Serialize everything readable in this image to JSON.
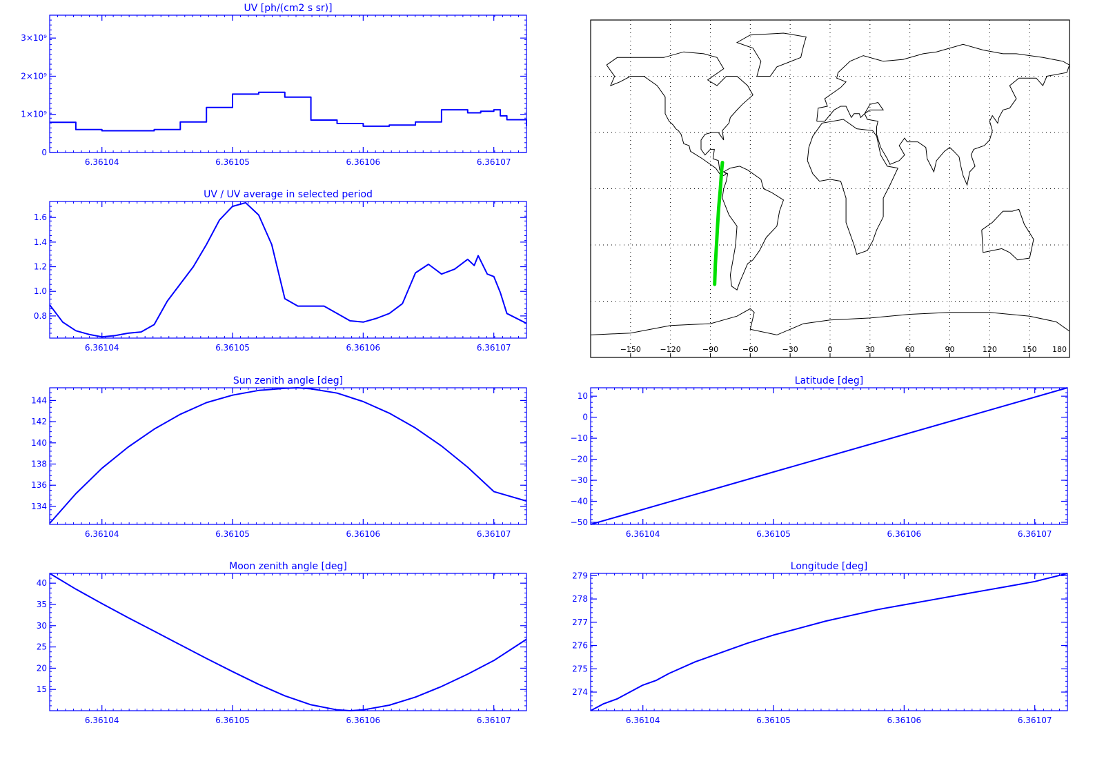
{
  "colors": {
    "axis": "#0000ff",
    "series": "#0000ff",
    "track": "#00e000",
    "coast": "#000000",
    "grid": "#000000"
  },
  "chart_data": [
    {
      "id": "uv",
      "type": "line",
      "title": "UV [ph/(cm2 s sr)]",
      "xlabel": "",
      "ylabel": "",
      "xlim": [
        6.361036,
        6.3610725
      ],
      "ylim": [
        0,
        3600000000
      ],
      "xticks": [
        6.36104,
        6.36105,
        6.36106,
        6.36107
      ],
      "xtick_labels": [
        "6.36104",
        "6.36105",
        "6.36106",
        "6.36107"
      ],
      "yticks": [
        0,
        1000000000,
        2000000000,
        3000000000
      ],
      "ytick_labels": [
        "0",
        "1×10⁹",
        "2×10⁹",
        "3×10⁹"
      ],
      "step": true,
      "grid": false,
      "x": [
        6.361036,
        6.361038,
        6.36104,
        6.361042,
        6.361044,
        6.361046,
        6.361048,
        6.36105,
        6.361052,
        6.361054,
        6.361056,
        6.361058,
        6.36106,
        6.361062,
        6.361064,
        6.361066,
        6.361068,
        6.361069,
        6.36107,
        6.3610705,
        6.361071,
        6.3610725
      ],
      "values": [
        790000000,
        600000000,
        570000000,
        570000000,
        600000000,
        800000000,
        1180000000,
        1530000000,
        1580000000,
        1450000000,
        850000000,
        760000000,
        690000000,
        720000000,
        800000000,
        1120000000,
        1040000000,
        1080000000,
        1120000000,
        960000000,
        860000000,
        700000000
      ]
    },
    {
      "id": "uv_ratio",
      "type": "line",
      "title": "UV / UV average in selected period",
      "xlabel": "",
      "ylabel": "",
      "xlim": [
        6.361036,
        6.3610725
      ],
      "ylim": [
        0.62,
        1.73
      ],
      "xticks": [
        6.36104,
        6.36105,
        6.36106,
        6.36107
      ],
      "xtick_labels": [
        "6.36104",
        "6.36105",
        "6.36106",
        "6.36107"
      ],
      "yticks": [
        0.8,
        1.0,
        1.2,
        1.4,
        1.6
      ],
      "ytick_labels": [
        "0.8",
        "1.0",
        "1.2",
        "1.4",
        "1.6"
      ],
      "grid": false,
      "x": [
        6.361036,
        6.361037,
        6.361038,
        6.361039,
        6.36104,
        6.361041,
        6.361042,
        6.361043,
        6.361044,
        6.361045,
        6.361046,
        6.361047,
        6.361048,
        6.361049,
        6.36105,
        6.361051,
        6.361052,
        6.361053,
        6.361054,
        6.361055,
        6.361056,
        6.361057,
        6.361058,
        6.361059,
        6.36106,
        6.361061,
        6.361062,
        6.361063,
        6.361064,
        6.361065,
        6.361066,
        6.361067,
        6.361068,
        6.3610685,
        6.3610688,
        6.3610695,
        6.36107,
        6.3610705,
        6.361071,
        6.3610725
      ],
      "values": [
        0.89,
        0.75,
        0.68,
        0.65,
        0.63,
        0.64,
        0.66,
        0.67,
        0.73,
        0.92,
        1.06,
        1.2,
        1.38,
        1.58,
        1.69,
        1.72,
        1.62,
        1.38,
        0.94,
        0.88,
        0.88,
        0.88,
        0.82,
        0.76,
        0.75,
        0.78,
        0.82,
        0.9,
        1.15,
        1.22,
        1.14,
        1.18,
        1.26,
        1.21,
        1.29,
        1.14,
        1.12,
        0.99,
        0.82,
        0.74
      ]
    },
    {
      "id": "sun_zenith",
      "type": "line",
      "title": "Sun zenith angle [deg]",
      "xlabel": "",
      "ylabel": "",
      "xlim": [
        6.361036,
        6.3610725
      ],
      "ylim": [
        132.3,
        145.2
      ],
      "xticks": [
        6.36104,
        6.36105,
        6.36106,
        6.36107
      ],
      "xtick_labels": [
        "6.36104",
        "6.36105",
        "6.36106",
        "6.36107"
      ],
      "yticks": [
        134,
        136,
        138,
        140,
        142,
        144
      ],
      "ytick_labels": [
        "134",
        "136",
        "138",
        "140",
        "142",
        "144"
      ],
      "grid": false,
      "x": [
        6.361036,
        6.361038,
        6.36104,
        6.361042,
        6.361044,
        6.361046,
        6.361048,
        6.36105,
        6.361052,
        6.361054,
        6.361055,
        6.361056,
        6.361058,
        6.36106,
        6.361062,
        6.361064,
        6.361066,
        6.361068,
        6.36107,
        6.3610725
      ],
      "values": [
        132.4,
        135.2,
        137.6,
        139.6,
        141.3,
        142.7,
        143.8,
        144.5,
        144.95,
        145.15,
        145.2,
        145.1,
        144.7,
        143.9,
        142.8,
        141.4,
        139.7,
        137.7,
        135.4,
        134.5
      ]
    },
    {
      "id": "latitude",
      "type": "line",
      "title": "Latitude [deg]",
      "xlabel": "",
      "ylabel": "",
      "xlim": [
        6.361036,
        6.3610725
      ],
      "ylim": [
        -51,
        14
      ],
      "xticks": [
        6.36104,
        6.36105,
        6.36106,
        6.36107
      ],
      "xtick_labels": [
        "6.36104",
        "6.36105",
        "6.36106",
        "6.36107"
      ],
      "yticks": [
        -50,
        -40,
        -30,
        -20,
        -10,
        0,
        10
      ],
      "ytick_labels": [
        "−50",
        "−40",
        "−30",
        "−20",
        "−10",
        "0",
        "10"
      ],
      "grid": false,
      "x": [
        6.361036,
        6.3610725
      ],
      "values": [
        -51,
        14
      ]
    },
    {
      "id": "moon_zenith",
      "type": "line",
      "title": "Moon zenith angle [deg]",
      "xlabel": "",
      "ylabel": "",
      "xlim": [
        6.361036,
        6.3610725
      ],
      "ylim": [
        10.0,
        42.3
      ],
      "xticks": [
        6.36104,
        6.36105,
        6.36106,
        6.36107
      ],
      "xtick_labels": [
        "6.36104",
        "6.36105",
        "6.36106",
        "6.36107"
      ],
      "yticks": [
        15,
        20,
        25,
        30,
        35,
        40
      ],
      "ytick_labels": [
        "15",
        "20",
        "25",
        "30",
        "35",
        "40"
      ],
      "grid": false,
      "x": [
        6.361036,
        6.361038,
        6.36104,
        6.361042,
        6.361044,
        6.361046,
        6.361048,
        6.36105,
        6.361052,
        6.361054,
        6.361056,
        6.361058,
        6.361059,
        6.36106,
        6.361062,
        6.361064,
        6.361066,
        6.361068,
        6.36107,
        6.3610725
      ],
      "values": [
        42.3,
        38.6,
        35.2,
        31.9,
        28.7,
        25.5,
        22.3,
        19.2,
        16.2,
        13.5,
        11.4,
        10.2,
        10.0,
        10.2,
        11.3,
        13.2,
        15.7,
        18.6,
        21.8,
        26.8
      ]
    },
    {
      "id": "longitude",
      "type": "line",
      "title": "Longitude [deg]",
      "xlabel": "",
      "ylabel": "",
      "xlim": [
        6.361036,
        6.3610725
      ],
      "ylim": [
        273.2,
        279.1
      ],
      "xticks": [
        6.36104,
        6.36105,
        6.36106,
        6.36107
      ],
      "xtick_labels": [
        "6.36104",
        "6.36105",
        "6.36106",
        "6.36107"
      ],
      "yticks": [
        274,
        275,
        276,
        277,
        278,
        279
      ],
      "ytick_labels": [
        "274",
        "275",
        "276",
        "277",
        "278",
        "279"
      ],
      "grid": false,
      "x": [
        6.361036,
        6.361037,
        6.361038,
        6.361039,
        6.36104,
        6.361041,
        6.361042,
        6.361044,
        6.361046,
        6.361048,
        6.36105,
        6.361052,
        6.361054,
        6.361056,
        6.361058,
        6.36106,
        6.361062,
        6.361064,
        6.361066,
        6.361068,
        6.36107,
        6.3610725
      ],
      "values": [
        273.2,
        273.5,
        273.7,
        274.0,
        274.3,
        274.5,
        274.8,
        275.3,
        275.7,
        276.1,
        276.45,
        276.75,
        277.05,
        277.3,
        277.55,
        277.75,
        277.95,
        278.15,
        278.35,
        278.55,
        278.75,
        279.1
      ]
    },
    {
      "id": "ground_track",
      "type": "scatter",
      "title": "",
      "xlabel": "",
      "ylabel": "",
      "xlim": [
        -180,
        180
      ],
      "ylim": [
        -90,
        90
      ],
      "xticks": [
        -150,
        -120,
        -90,
        -60,
        -30,
        0,
        30,
        60,
        90,
        120,
        150,
        180
      ],
      "xtick_labels": [
        "−150",
        "−120",
        "−90",
        "−60",
        "−30",
        "0",
        "30",
        "60",
        "90",
        "120",
        "150",
        "180"
      ],
      "grid": true,
      "grid_lon": [
        -150,
        -120,
        -90,
        -60,
        -30,
        0,
        30,
        60,
        90,
        120,
        150
      ],
      "grid_lat": [
        -60,
        -30,
        0,
        30,
        60
      ],
      "x": [
        -86.8,
        -86.2,
        -85.4,
        -84.6,
        -83.7,
        -82.5,
        -81.5,
        -80.9
      ],
      "values": [
        -51,
        -40,
        -30,
        -20,
        -10,
        0,
        10,
        14
      ]
    }
  ]
}
